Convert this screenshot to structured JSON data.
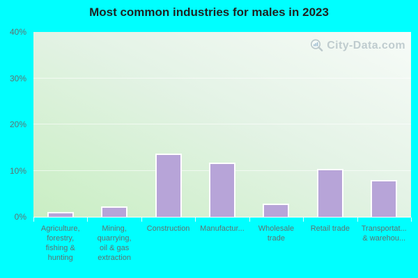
{
  "title": "Most common industries for males in 2023",
  "watermark": {
    "text": "City-Data.com"
  },
  "colors": {
    "background": "#00ffff",
    "title_text": "#1e2323",
    "axis_text": "#5e7272",
    "bar_fill": "#b7a4d8",
    "bar_border": "#ffffff",
    "plot_top": "#f7fbf8",
    "plot_bottom": "#c9eec3",
    "grid_line": "#ffffff",
    "watermark_text": "#b3c1c6",
    "watermark_icon_bars": "#8fb2cc",
    "watermark_icon_ring": "#aebdc2"
  },
  "y_axis": {
    "tick_labels": [
      "40%",
      "30%",
      "20%",
      "10%",
      "0%"
    ]
  },
  "x_axis": {
    "tick_label_lines": [
      [
        "Agriculture,",
        "forestry,",
        "fishing &",
        "hunting"
      ],
      [
        "Mining,",
        "quarrying,",
        "oil & gas",
        "extraction"
      ],
      [
        "Construction"
      ],
      [
        "Manufactur..."
      ],
      [
        "Wholesale",
        "trade"
      ],
      [
        "Retail trade"
      ],
      [
        "Transportat...",
        "& warehou..."
      ]
    ]
  },
  "chart_data": {
    "type": "bar",
    "title": "Most common industries for males in 2023",
    "categories": [
      "Agriculture, forestry, fishing & hunting",
      "Mining, quarrying, oil & gas extraction",
      "Construction",
      "Manufacturing",
      "Wholesale trade",
      "Retail trade",
      "Transportation & warehousing"
    ],
    "values": [
      1.1,
      2.2,
      13.7,
      11.7,
      2.8,
      10.4,
      8.0
    ],
    "unit": "%",
    "xlabel": "",
    "ylabel": "",
    "ylim": [
      0,
      40
    ],
    "y_tick_step": 10,
    "grid": true,
    "legend": false,
    "gridlines_at": [
      10,
      20,
      30
    ]
  }
}
